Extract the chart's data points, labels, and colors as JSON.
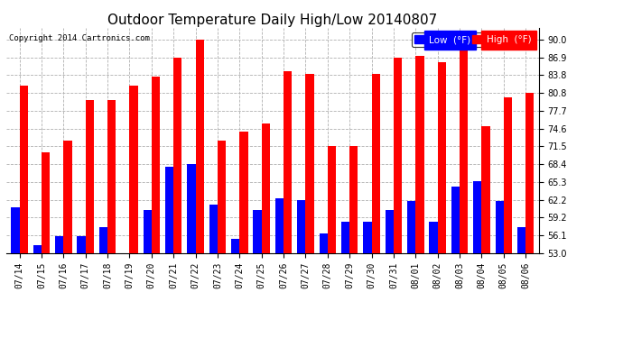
{
  "title": "Outdoor Temperature Daily High/Low 20140807",
  "copyright": "Copyright 2014 Cartronics.com",
  "legend_low": "Low  (°F)",
  "legend_high": "High  (°F)",
  "dates": [
    "07/14",
    "07/15",
    "07/16",
    "07/17",
    "07/18",
    "07/19",
    "07/20",
    "07/21",
    "07/22",
    "07/23",
    "07/24",
    "07/25",
    "07/26",
    "07/27",
    "07/28",
    "07/29",
    "07/30",
    "07/31",
    "08/01",
    "08/02",
    "08/03",
    "08/04",
    "08/05",
    "08/06"
  ],
  "highs": [
    82.0,
    70.5,
    72.5,
    79.5,
    79.5,
    82.0,
    83.5,
    86.8,
    90.0,
    72.5,
    74.0,
    75.5,
    84.5,
    84.0,
    71.5,
    71.5,
    84.0,
    86.9,
    87.1,
    86.0,
    88.5,
    75.0,
    80.0,
    80.8
  ],
  "lows": [
    61.0,
    54.5,
    56.0,
    56.0,
    57.5,
    53.0,
    60.5,
    68.0,
    68.5,
    61.5,
    55.5,
    60.5,
    62.5,
    62.2,
    56.5,
    58.5,
    58.5,
    60.5,
    62.0,
    58.5,
    64.5,
    65.5,
    62.0,
    57.5
  ],
  "ylim_min": 53.0,
  "ylim_max": 92.0,
  "yticks": [
    53.0,
    56.1,
    59.2,
    62.2,
    65.3,
    68.4,
    71.5,
    74.6,
    77.7,
    80.8,
    83.8,
    86.9,
    90.0
  ],
  "bar_width": 0.38,
  "high_color": "#ff0000",
  "low_color": "#0000ff",
  "bg_color": "#ffffff",
  "grid_color": "#b0b0b0",
  "title_fontsize": 11,
  "tick_fontsize": 7,
  "legend_fontsize": 7.5
}
